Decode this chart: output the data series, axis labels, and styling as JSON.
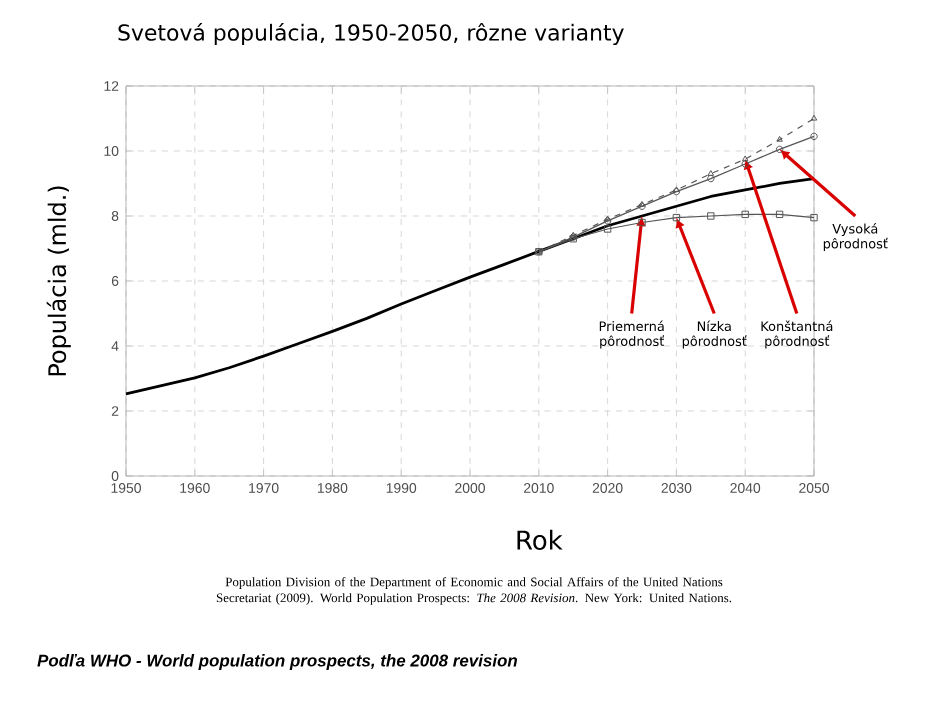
{
  "chart_data": {
    "type": "line",
    "title": "Svetová populácia, 1950-2050, rôzne varianty",
    "xlabel": "Rok",
    "ylabel": "Populácia (mld.)",
    "xlim": [
      1950,
      2050
    ],
    "ylim": [
      0,
      12
    ],
    "xticks": [
      1950,
      1960,
      1970,
      1980,
      1990,
      2000,
      2010,
      2020,
      2030,
      2040,
      2050
    ],
    "yticks": [
      0,
      2,
      4,
      6,
      8,
      10,
      12
    ],
    "grid": true,
    "series": [
      {
        "color": "#000000",
        "marker": "none",
        "line_style": "solid",
        "x": [
          1950,
          1955,
          1960,
          1965,
          1970,
          1975,
          1980,
          1985,
          1990,
          1995,
          2000,
          2005,
          2010,
          2015,
          2020,
          2025,
          2030,
          2035,
          2040,
          2045,
          2050
        ],
        "values": [
          2.53,
          2.77,
          3.02,
          3.33,
          3.69,
          4.07,
          4.45,
          4.85,
          5.29,
          5.71,
          6.12,
          6.51,
          6.91,
          7.3,
          7.7,
          8.0,
          8.3,
          8.6,
          8.8,
          9.0,
          9.15
        ]
      },
      {
        "name": "Nízka pôrodnosť",
        "color": "#555555",
        "marker": "square",
        "line_style": "solid",
        "x": [
          2010,
          2015,
          2020,
          2025,
          2030,
          2035,
          2040,
          2045,
          2050
        ],
        "values": [
          6.9,
          7.3,
          7.6,
          7.8,
          7.95,
          8.0,
          8.05,
          8.05,
          7.95
        ]
      },
      {
        "name": "Vysoká pôrodnosť",
        "color": "#555555",
        "marker": "circle",
        "line_style": "solid",
        "x": [
          2010,
          2015,
          2020,
          2025,
          2030,
          2035,
          2040,
          2045,
          2050
        ],
        "values": [
          6.9,
          7.35,
          7.85,
          8.3,
          8.75,
          9.15,
          9.6,
          10.05,
          10.45
        ]
      },
      {
        "name": "Konštantná pôrodnosť",
        "color": "#555555",
        "marker": "triangle",
        "line_style": "dashed",
        "x": [
          2010,
          2015,
          2020,
          2025,
          2030,
          2035,
          2040,
          2045,
          2050
        ],
        "values": [
          6.9,
          7.4,
          7.9,
          8.35,
          8.8,
          9.3,
          9.75,
          10.35,
          11.0
        ]
      }
    ],
    "annotations": [
      {
        "text": "Priemerná pôrodnosť",
        "x": 2025,
        "y": 8.0
      },
      "Population Division of the Department of Economic and Social Affairs of the United Nations Secretariat (2009). World Population Prospects: *The 2008 Revision*. New York: United Nations.",
      "Podľa WHO - World population prospects, the 2008 revision"
    ]
  }
}
